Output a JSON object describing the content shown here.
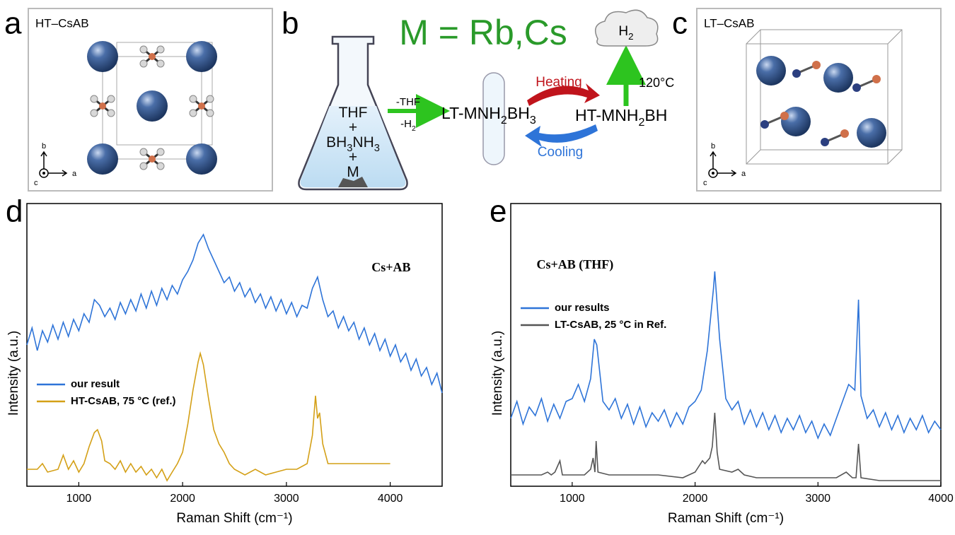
{
  "panels": {
    "a": {
      "label": "a",
      "title": "HT–CsAB",
      "axes": [
        "b",
        "a",
        "c"
      ]
    },
    "b": {
      "label": "b",
      "headline": "M = Rb,Cs",
      "flask": [
        [
          "THF"
        ],
        [
          "+"
        ],
        [
          "BH",
          "3",
          "NH",
          "3"
        ],
        [
          "+"
        ],
        [
          "M"
        ]
      ],
      "arrow_top": "-THF",
      "arrow_bottom": [
        "-H",
        "2"
      ],
      "product": [
        "LT-MNH",
        "2",
        "BH",
        "3"
      ],
      "heating": "Heating",
      "cooling": "Cooling",
      "high_temp": [
        "HT-MNH",
        "2",
        "BH"
      ],
      "gas": [
        "H",
        "2"
      ],
      "temperature": "120°C"
    },
    "c": {
      "label": "c",
      "title": "LT–CsAB",
      "axes": [
        "b",
        "a",
        "c"
      ]
    }
  },
  "chart_data": [
    {
      "type": "line",
      "panel_label": "d",
      "annotation": "Cs+AB",
      "x_label": "Raman Shift (cm⁻¹)",
      "y_label": "Intensity (a.u.)",
      "xlim": [
        500,
        4500
      ],
      "xticks": [
        1000,
        2000,
        3000,
        4000
      ],
      "ylim": [
        0,
        100
      ],
      "legend": "lower left",
      "series": [
        {
          "name": "our result",
          "color": "#2e74d8",
          "x": [
            500,
            550,
            600,
            650,
            700,
            750,
            800,
            850,
            900,
            950,
            1000,
            1050,
            1100,
            1150,
            1200,
            1250,
            1300,
            1350,
            1400,
            1450,
            1500,
            1550,
            1600,
            1650,
            1700,
            1750,
            1800,
            1850,
            1900,
            1950,
            2000,
            2050,
            2100,
            2150,
            2200,
            2250,
            2300,
            2350,
            2400,
            2450,
            2500,
            2550,
            2600,
            2650,
            2700,
            2750,
            2800,
            2850,
            2900,
            2950,
            3000,
            3050,
            3100,
            3150,
            3200,
            3250,
            3300,
            3350,
            3400,
            3450,
            3500,
            3550,
            3600,
            3650,
            3700,
            3750,
            3800,
            3850,
            3900,
            3950,
            4000,
            4050,
            4100,
            4150,
            4200,
            4250,
            4300,
            4350,
            4400,
            4450,
            4500
          ],
          "values": [
            50,
            56,
            48,
            55,
            51,
            57,
            52,
            58,
            53,
            59,
            55,
            61,
            58,
            66,
            64,
            60,
            63,
            59,
            65,
            61,
            66,
            62,
            68,
            63,
            69,
            64,
            70,
            66,
            71,
            68,
            73,
            76,
            80,
            86,
            89,
            84,
            80,
            76,
            72,
            74,
            69,
            72,
            67,
            70,
            65,
            68,
            63,
            67,
            62,
            66,
            61,
            65,
            60,
            64,
            63,
            70,
            74,
            66,
            60,
            62,
            56,
            60,
            55,
            58,
            52,
            56,
            50,
            54,
            48,
            52,
            46,
            50,
            44,
            47,
            41,
            45,
            39,
            42,
            36,
            40,
            33
          ]
        },
        {
          "name": "HT-CsAB, 75 °C (ref.)",
          "color": "#d4a017",
          "x": [
            500,
            600,
            650,
            700,
            800,
            850,
            900,
            950,
            1000,
            1050,
            1100,
            1150,
            1180,
            1220,
            1250,
            1300,
            1350,
            1400,
            1450,
            1500,
            1550,
            1600,
            1650,
            1700,
            1750,
            1800,
            1850,
            1900,
            1950,
            2000,
            2050,
            2100,
            2150,
            2170,
            2200,
            2250,
            2300,
            2350,
            2400,
            2450,
            2500,
            2600,
            2700,
            2800,
            2900,
            3000,
            3100,
            3200,
            3250,
            3280,
            3300,
            3320,
            3350,
            3400,
            3500,
            3700,
            4000
          ],
          "values": [
            6,
            6,
            8,
            5,
            6,
            11,
            6,
            9,
            5,
            8,
            14,
            19,
            20,
            16,
            9,
            8,
            6,
            9,
            5,
            8,
            5,
            7,
            4,
            6,
            3,
            6,
            2,
            5,
            8,
            12,
            22,
            34,
            44,
            47,
            43,
            31,
            20,
            15,
            12,
            8,
            6,
            4,
            6,
            4,
            5,
            6,
            6,
            8,
            18,
            32,
            24,
            26,
            15,
            8,
            8,
            8,
            8
          ]
        }
      ]
    },
    {
      "type": "line",
      "panel_label": "e",
      "annotation": "Cs+AB (THF)",
      "x_label": "Raman Shift (cm⁻¹)",
      "y_label": "Intensity (a.u.)",
      "xlim": [
        500,
        4000
      ],
      "xticks": [
        1000,
        2000,
        3000,
        4000
      ],
      "ylim": [
        0,
        100
      ],
      "legend": "center left",
      "series": [
        {
          "name": "our results",
          "color": "#2e74d8",
          "x": [
            500,
            550,
            600,
            650,
            700,
            750,
            800,
            850,
            900,
            950,
            1000,
            1050,
            1100,
            1150,
            1180,
            1200,
            1250,
            1300,
            1350,
            1400,
            1450,
            1500,
            1550,
            1600,
            1650,
            1700,
            1750,
            1800,
            1850,
            1900,
            1950,
            2000,
            2050,
            2100,
            2150,
            2160,
            2200,
            2250,
            2300,
            2350,
            2400,
            2450,
            2500,
            2550,
            2600,
            2650,
            2700,
            2750,
            2800,
            2850,
            2900,
            2950,
            3000,
            3050,
            3100,
            3150,
            3200,
            3250,
            3300,
            3330,
            3350,
            3400,
            3450,
            3500,
            3550,
            3600,
            3650,
            3700,
            3750,
            3800,
            3850,
            3900,
            3950,
            4000
          ],
          "values": [
            24,
            30,
            22,
            28,
            25,
            31,
            23,
            29,
            24,
            30,
            31,
            36,
            30,
            38,
            52,
            50,
            30,
            27,
            31,
            24,
            29,
            22,
            28,
            21,
            26,
            23,
            27,
            21,
            26,
            22,
            28,
            30,
            34,
            48,
            70,
            76,
            52,
            31,
            27,
            30,
            22,
            27,
            21,
            26,
            20,
            25,
            19,
            24,
            20,
            25,
            19,
            23,
            17,
            22,
            18,
            24,
            30,
            36,
            34,
            66,
            32,
            24,
            27,
            21,
            26,
            20,
            25,
            19,
            24,
            20,
            25,
            19,
            23,
            20
          ]
        },
        {
          "name": "LT-CsAB, 25 °C in Ref.",
          "color": "#555555",
          "x": [
            500,
            750,
            800,
            830,
            860,
            900,
            920,
            1000,
            1100,
            1150,
            1170,
            1185,
            1195,
            1210,
            1300,
            1500,
            1700,
            1900,
            2000,
            2060,
            2080,
            2120,
            2140,
            2160,
            2180,
            2200,
            2300,
            2350,
            2400,
            2500,
            3000,
            3150,
            3230,
            3280,
            3310,
            3330,
            3350,
            3500,
            4000
          ],
          "values": [
            4,
            4,
            5,
            4,
            5,
            9,
            4,
            4,
            4,
            6,
            10,
            5,
            16,
            5,
            4,
            4,
            4,
            3,
            5,
            9,
            8,
            10,
            14,
            26,
            12,
            6,
            5,
            6,
            4,
            3,
            3,
            3,
            5,
            3,
            3,
            15,
            3,
            2,
            2
          ]
        }
      ]
    }
  ]
}
